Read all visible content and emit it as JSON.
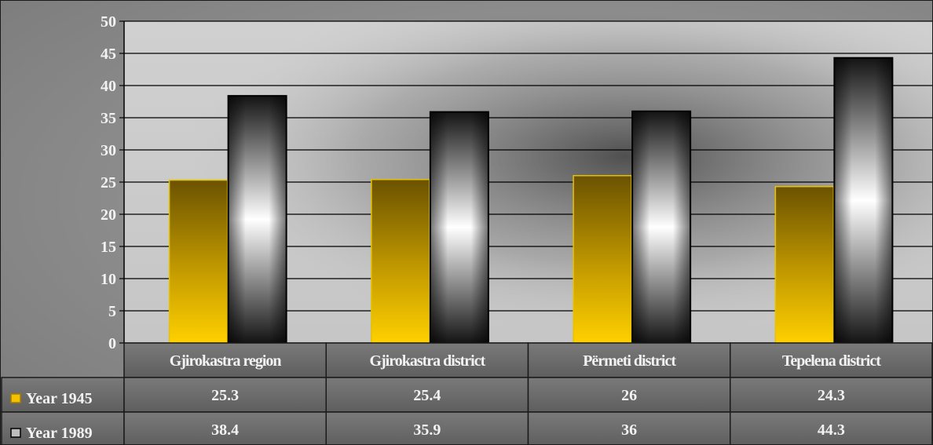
{
  "chart_data": {
    "type": "bar",
    "title": "",
    "xlabel": "",
    "ylabel": "",
    "ylim": [
      0,
      50
    ],
    "yticks": [
      0,
      5,
      10,
      15,
      20,
      25,
      30,
      35,
      40,
      45,
      50
    ],
    "grid": true,
    "legend": "data-table-left",
    "categories": [
      "Gjirokastra region",
      "Gjirokastra district",
      "Përmeti district",
      "Tepelena district"
    ],
    "series": [
      {
        "name": "Year 1945",
        "values": [
          25.3,
          25.4,
          26,
          24.3
        ],
        "color": "#f2c200",
        "labels": [
          "25.3",
          "25.4",
          "26",
          "24.3"
        ]
      },
      {
        "name": "Year 1989",
        "values": [
          38.4,
          35.9,
          36,
          44.3
        ],
        "color": "#1e1e1e",
        "labels": [
          "38.4",
          "35.9",
          "36",
          "44.3"
        ]
      }
    ]
  }
}
